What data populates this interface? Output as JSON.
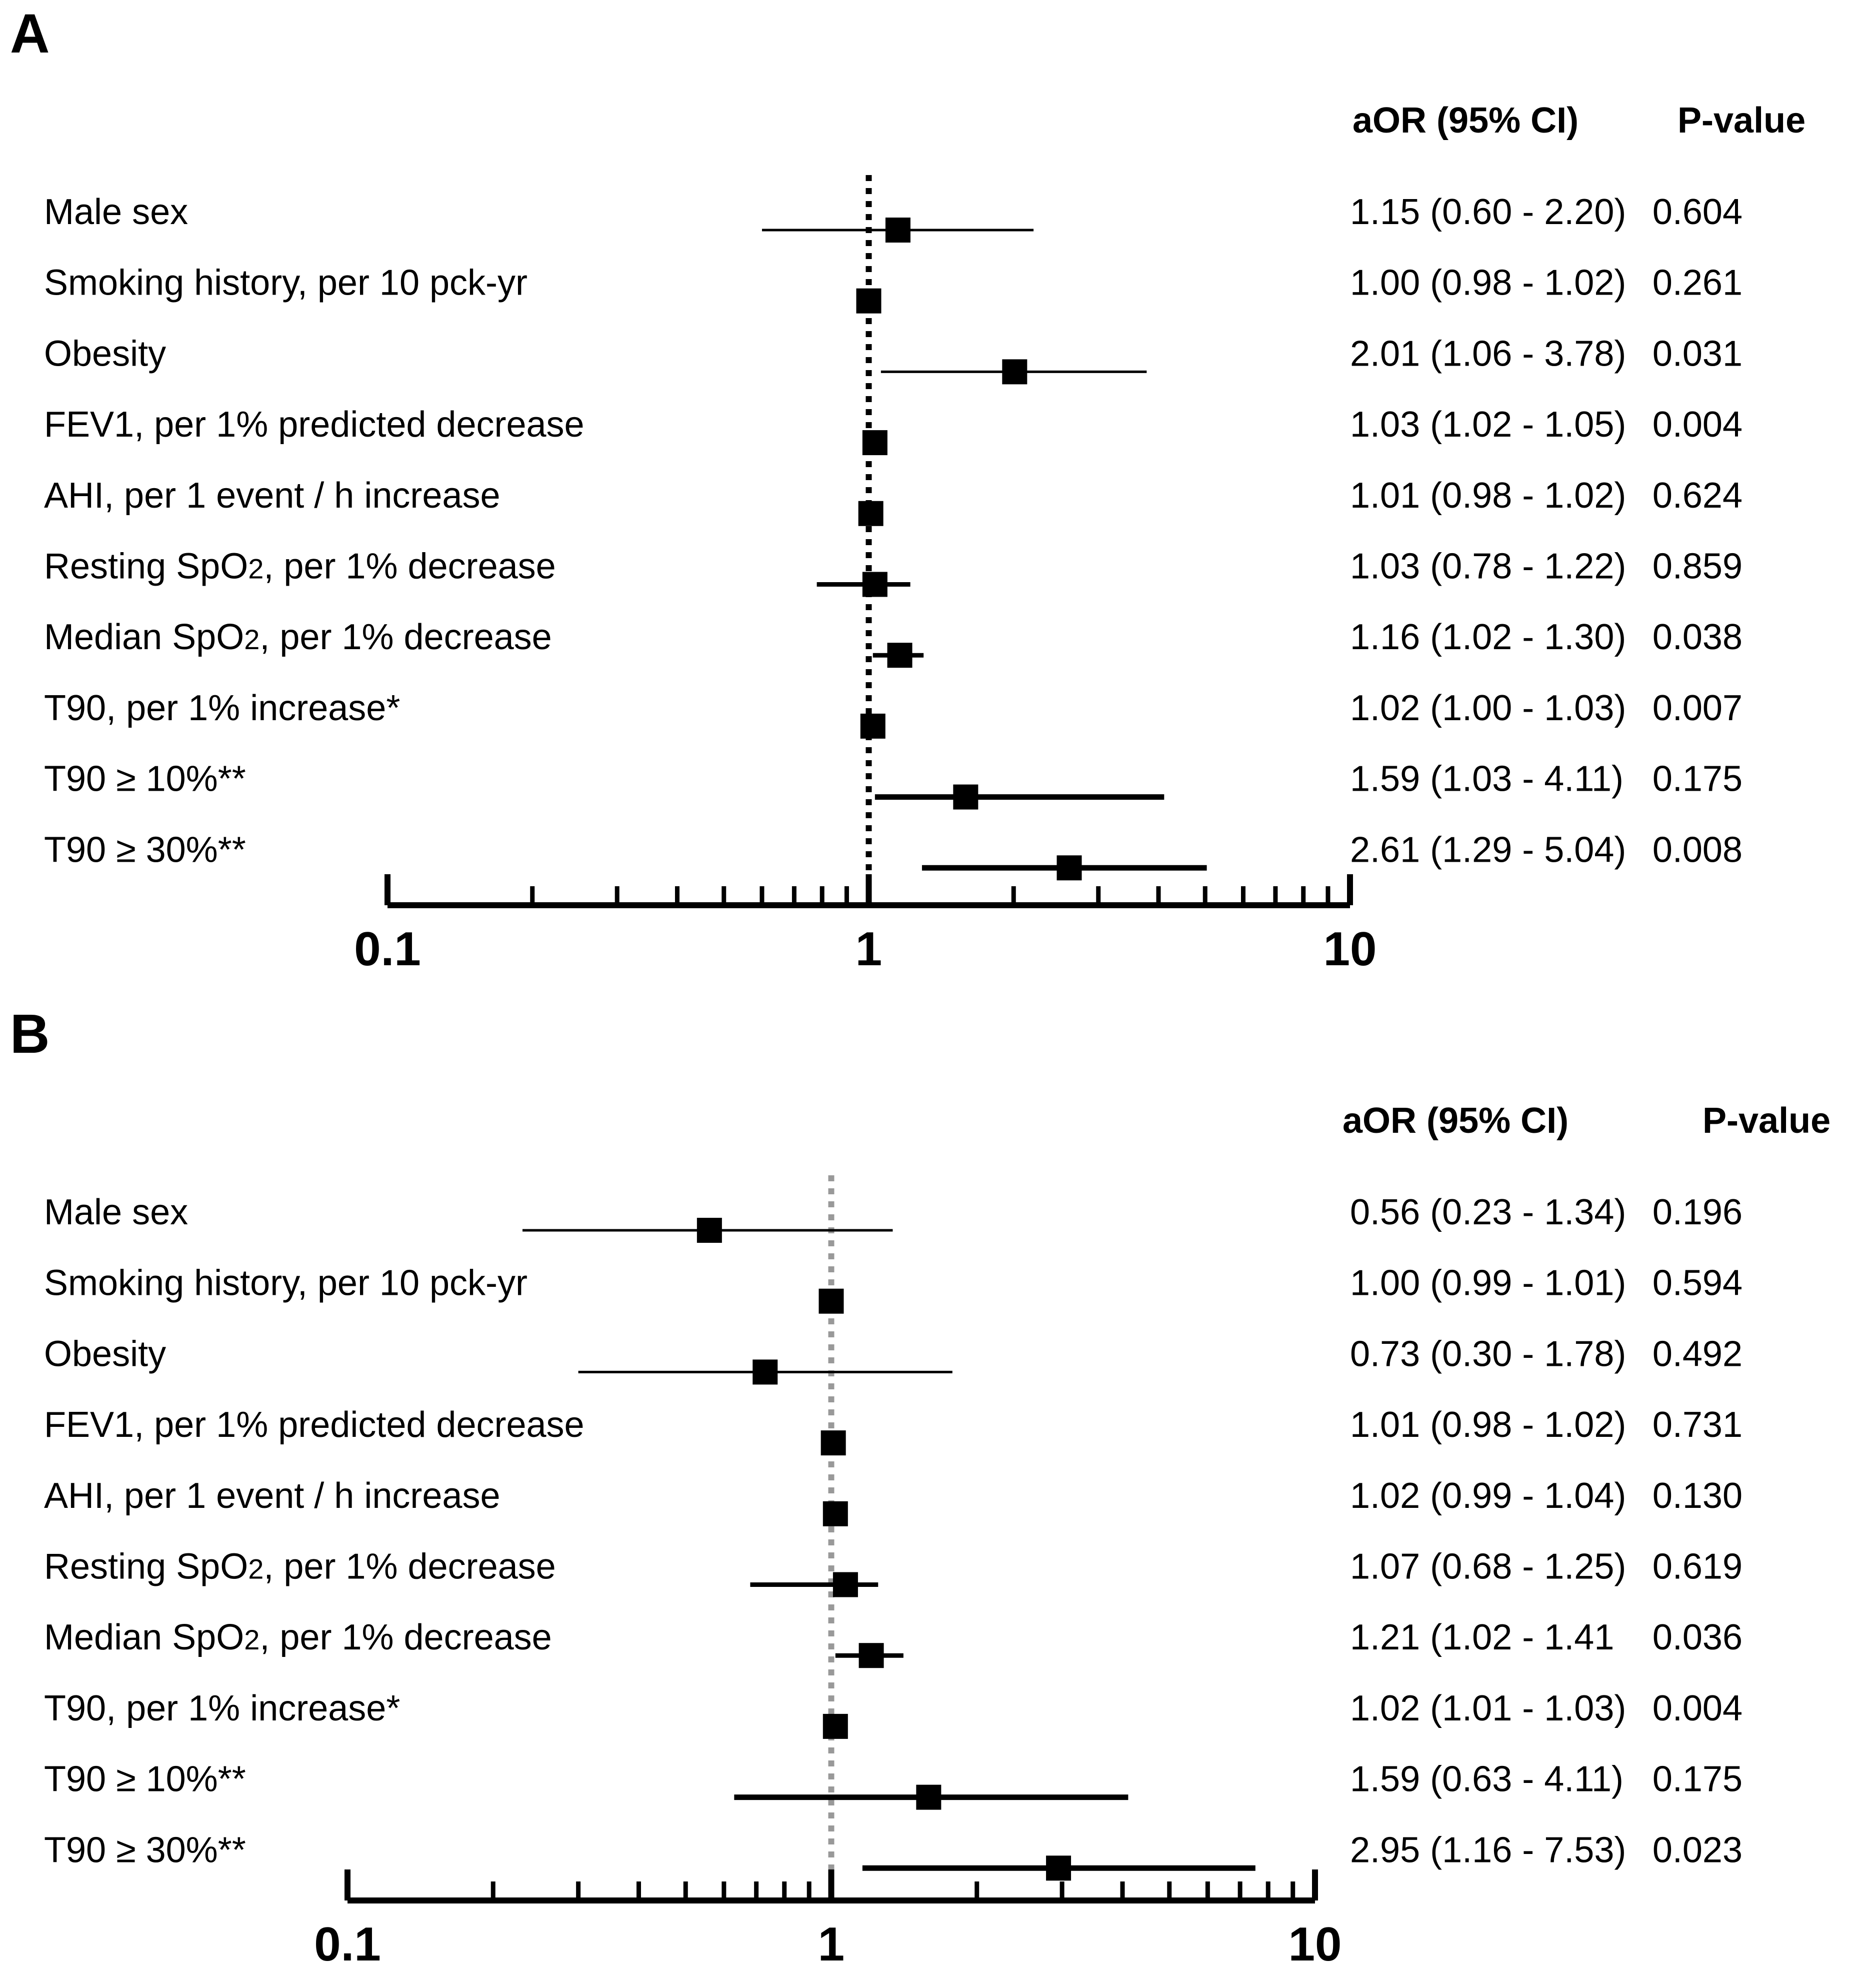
{
  "chart_data": [
    {
      "type": "forest",
      "panel": "A",
      "column_headers": {
        "estimate": "aOR (95% CI)",
        "pvalue": "P-value"
      },
      "x_scale": "log",
      "xlim": [
        0.1,
        10
      ],
      "x_ticks": [
        "0.1",
        "1",
        "10"
      ],
      "reference_value": 1,
      "reference_line": {
        "style": "dotted",
        "color": "#000000"
      },
      "rows": [
        {
          "label": "Male sex",
          "sub": "",
          "label_end": "",
          "or": 1.15,
          "lo": 0.6,
          "hi": 2.2,
          "ci_text": "1.15 (0.60 -  2.20)",
          "p": "0.604"
        },
        {
          "label": "Smoking history, per 10 pck-yr",
          "sub": "",
          "label_end": "",
          "or": 1.0,
          "lo": 0.98,
          "hi": 1.02,
          "ci_text": "1.00 (0.98 - 1.02)",
          "p": "0.261"
        },
        {
          "label": "Obesity",
          "sub": "",
          "label_end": "",
          "or": 2.01,
          "lo": 1.06,
          "hi": 3.78,
          "ci_text": "2.01 (1.06 - 3.78)",
          "p": "0.031"
        },
        {
          "label": "FEV1, per 1% predicted decrease",
          "sub": "",
          "label_end": "",
          "or": 1.03,
          "lo": 1.02,
          "hi": 1.05,
          "ci_text": "1.03 (1.02 - 1.05)",
          "p": "0.004"
        },
        {
          "label": "AHI, per 1 event / h increase",
          "sub": "",
          "label_end": "",
          "or": 1.01,
          "lo": 0.98,
          "hi": 1.02,
          "ci_text": "1.01 (0.98 - 1.02)",
          "p": "0.624"
        },
        {
          "label": "Resting SpO",
          "sub": "2",
          "label_end": ", per 1% decrease",
          "or": 1.03,
          "lo": 0.78,
          "hi": 1.22,
          "ci_text": "1.03 (0.78 - 1.22)",
          "p": "0.859"
        },
        {
          "label": "Median SpO",
          "sub": "2",
          "label_end": ", per 1% decrease",
          "or": 1.16,
          "lo": 1.02,
          "hi": 1.3,
          "ci_text": "1.16 (1.02 - 1.30)",
          "p": "0.038"
        },
        {
          "label": "T90, per 1% increase*",
          "sub": "",
          "label_end": "",
          "or": 1.02,
          "lo": 1.0,
          "hi": 1.03,
          "ci_text": "1.02 (1.00 - 1.03)",
          "p": "0.007"
        },
        {
          "label": "T90 ≥ 10%**",
          "sub": "",
          "label_end": "",
          "or": 1.59,
          "lo": 1.03,
          "hi": 4.11,
          "ci_text": "1.59 (1.03 - 4.11)",
          "p": "0.175"
        },
        {
          "label": "T90 ≥ 30%**",
          "sub": "",
          "label_end": "",
          "or": 2.61,
          "lo": 1.29,
          "hi": 5.04,
          "ci_text": "2.61 (1.29 - 5.04)",
          "p": "0.008"
        }
      ]
    },
    {
      "type": "forest",
      "panel": "B",
      "column_headers": {
        "estimate": "aOR (95% CI)",
        "pvalue": "P-value"
      },
      "x_scale": "log",
      "xlim": [
        0.1,
        10
      ],
      "x_ticks": [
        "0.1",
        "1",
        "10"
      ],
      "reference_value": 1,
      "reference_line": {
        "style": "dotted",
        "color": "#999999"
      },
      "rows": [
        {
          "label": "Male sex",
          "sub": "",
          "label_end": "",
          "or": 0.56,
          "lo": 0.23,
          "hi": 1.34,
          "ci_text": "0.56 (0.23 -  1.34)",
          "p": "0.196"
        },
        {
          "label": "Smoking history, per 10 pck-yr",
          "sub": "",
          "label_end": "",
          "or": 1.0,
          "lo": 0.99,
          "hi": 1.01,
          "ci_text": "1.00 (0.99 - 1.01)",
          "p": "0.594"
        },
        {
          "label": "Obesity",
          "sub": "",
          "label_end": "",
          "or": 0.73,
          "lo": 0.3,
          "hi": 1.78,
          "ci_text": "0.73 (0.30 - 1.78)",
          "p": "0.492"
        },
        {
          "label": "FEV1, per 1% predicted decrease",
          "sub": "",
          "label_end": "",
          "or": 1.01,
          "lo": 0.98,
          "hi": 1.02,
          "ci_text": "1.01 (0.98 - 1.02)",
          "p": "0.731"
        },
        {
          "label": "AHI, per 1 event / h increase",
          "sub": "",
          "label_end": "",
          "or": 1.02,
          "lo": 0.99,
          "hi": 1.04,
          "ci_text": "1.02 (0.99 - 1.04)",
          "p": "0.130"
        },
        {
          "label": "Resting SpO",
          "sub": "2",
          "label_end": ", per 1% decrease",
          "or": 1.07,
          "lo": 0.68,
          "hi": 1.25,
          "ci_text": "1.07 (0.68 - 1.25)",
          "p": "0.619"
        },
        {
          "label": "Median SpO",
          "sub": "2",
          "label_end": ", per 1% decrease",
          "or": 1.21,
          "lo": 1.02,
          "hi": 1.41,
          "ci_text": "1.21 (1.02 - 1.41",
          "p": "0.036"
        },
        {
          "label": "T90, per 1% increase*",
          "sub": "",
          "label_end": "",
          "or": 1.02,
          "lo": 1.01,
          "hi": 1.03,
          "ci_text": "1.02 (1.01 - 1.03)",
          "p": "0.004"
        },
        {
          "label": "T90 ≥ 10%**",
          "sub": "",
          "label_end": "",
          "or": 1.59,
          "lo": 0.63,
          "hi": 4.11,
          "ci_text": "1.59 (0.63 - 4.11)",
          "p": "0.175"
        },
        {
          "label": "T90 ≥ 30%**",
          "sub": "",
          "label_end": "",
          "or": 2.95,
          "lo": 1.16,
          "hi": 7.53,
          "ci_text": "2.95 (1.16 - 7.53)",
          "p": "0.023"
        }
      ]
    }
  ]
}
